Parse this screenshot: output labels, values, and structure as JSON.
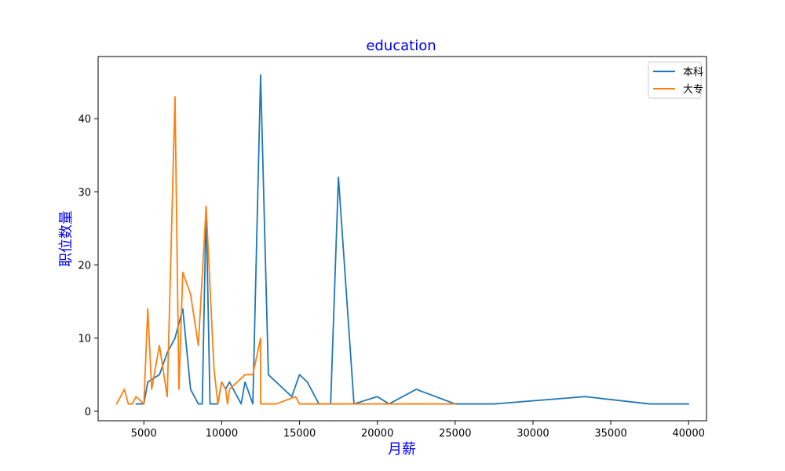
{
  "chart_data": {
    "type": "line",
    "title": "education",
    "xlabel": "月薪",
    "ylabel": "职位数量",
    "xlim": [
      2060,
      41150
    ],
    "ylim": [
      -1.3,
      48.5
    ],
    "xticks": [
      5000,
      10000,
      15000,
      20000,
      25000,
      30000,
      35000,
      40000
    ],
    "yticks": [
      0,
      10,
      20,
      30,
      40
    ],
    "grid": false,
    "legend_position": "top-right",
    "label_color": "#0000ff",
    "series": [
      {
        "name": "本科",
        "color": "#1f77b4",
        "points": [
          [
            4500,
            1
          ],
          [
            5000,
            1
          ],
          [
            5250,
            4
          ],
          [
            6000,
            5
          ],
          [
            6500,
            8
          ],
          [
            7000,
            10
          ],
          [
            7500,
            14
          ],
          [
            8000,
            3
          ],
          [
            8500,
            1
          ],
          [
            8750,
            1
          ],
          [
            9000,
            28
          ],
          [
            9250,
            1
          ],
          [
            9750,
            1
          ],
          [
            10000,
            4
          ],
          [
            10250,
            3
          ],
          [
            10500,
            4
          ],
          [
            10750,
            3
          ],
          [
            11250,
            1
          ],
          [
            11500,
            4
          ],
          [
            12000,
            1
          ],
          [
            12500,
            46
          ],
          [
            13000,
            5
          ],
          [
            13500,
            4
          ],
          [
            14500,
            2
          ],
          [
            15000,
            5
          ],
          [
            15500,
            4
          ],
          [
            16250,
            1
          ],
          [
            16750,
            1
          ],
          [
            17000,
            1
          ],
          [
            17500,
            32
          ],
          [
            18500,
            1
          ],
          [
            20000,
            2
          ],
          [
            20750,
            1
          ],
          [
            22500,
            3
          ],
          [
            25000,
            1
          ],
          [
            27500,
            1
          ],
          [
            33333,
            2
          ],
          [
            37500,
            1
          ],
          [
            40000,
            1
          ]
        ]
      },
      {
        "name": "大专",
        "color": "#ff7f0e",
        "points": [
          [
            3250,
            1
          ],
          [
            3750,
            3
          ],
          [
            4000,
            1
          ],
          [
            4250,
            1
          ],
          [
            4500,
            2
          ],
          [
            5000,
            1
          ],
          [
            5250,
            14
          ],
          [
            5500,
            3
          ],
          [
            6000,
            9
          ],
          [
            6500,
            2
          ],
          [
            7000,
            43
          ],
          [
            7250,
            3
          ],
          [
            7500,
            19
          ],
          [
            8000,
            16
          ],
          [
            8500,
            9
          ],
          [
            9000,
            28
          ],
          [
            9500,
            6
          ],
          [
            9750,
            1
          ],
          [
            10000,
            4
          ],
          [
            10250,
            3
          ],
          [
            10375,
            1
          ],
          [
            10500,
            3
          ],
          [
            11500,
            5
          ],
          [
            12000,
            5
          ],
          [
            12500,
            10
          ],
          [
            12500,
            1
          ],
          [
            13500,
            1
          ],
          [
            14750,
            2
          ],
          [
            15000,
            1
          ],
          [
            16000,
            1
          ],
          [
            20000,
            1
          ],
          [
            25000,
            1
          ]
        ]
      }
    ]
  }
}
